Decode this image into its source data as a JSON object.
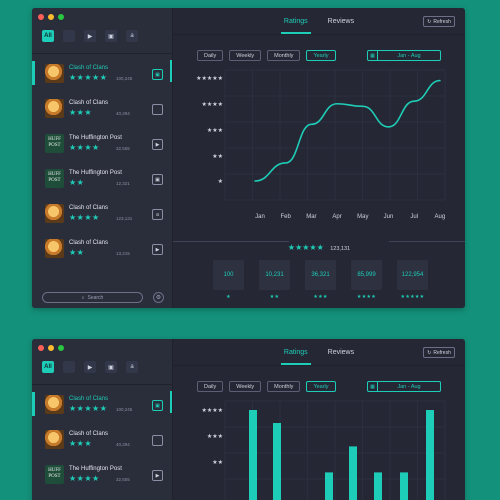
{
  "windows": [
    {
      "filters": [
        {
          "name": "all",
          "label": "All"
        },
        {
          "name": "apple",
          "label": ""
        },
        {
          "name": "play",
          "label": "▶"
        },
        {
          "name": "windows",
          "label": "▣"
        },
        {
          "name": "amazon",
          "label": "a"
        }
      ],
      "apps": [
        {
          "name": "Clash of Clans",
          "stars": "★★★★★",
          "count": "100,245",
          "icon": "coc",
          "store": "windows-store-icon",
          "store_glyph": "▣"
        },
        {
          "name": "Clash of Clans",
          "stars": "★★★",
          "count": "40,294",
          "icon": "coc",
          "store": "apple-store-icon",
          "store_glyph": ""
        },
        {
          "name": "The Huffington Post",
          "stars": "★★★★",
          "count": "32,555",
          "icon": "huff",
          "store": "play-store-icon",
          "store_glyph": "▶"
        },
        {
          "name": "The Huffington Post",
          "stars": "★★",
          "count": "12,321",
          "icon": "huff",
          "store": "windows-store-icon",
          "store_glyph": "▣"
        },
        {
          "name": "Clash of Clans",
          "stars": "★★★★",
          "count": "123,131",
          "icon": "coc",
          "store": "amazon-store-icon",
          "store_glyph": "a"
        },
        {
          "name": "Clash of Clans",
          "stars": "★★",
          "count": "13,215",
          "icon": "coc",
          "store": "play-store-icon",
          "store_glyph": "▶"
        }
      ],
      "huff_logo": "HUFF POST",
      "search_placeholder": "Search",
      "tabs": {
        "ratings": "Ratings",
        "reviews": "Reviews"
      },
      "refresh_label": "Refresh",
      "periods": [
        "Daily",
        "Weekly",
        "Monthly",
        "Yearly"
      ],
      "active_period": "Yearly",
      "date_range": "Jan - Aug",
      "summary": {
        "stars": "★★★★★",
        "count": "123,131"
      },
      "cards": [
        {
          "value": "100",
          "stars": "★"
        },
        {
          "value": "10,231",
          "stars": "★★"
        },
        {
          "value": "36,321",
          "stars": "★★★"
        },
        {
          "value": "85,999",
          "stars": "★★★★"
        },
        {
          "value": "122,954",
          "stars": "★★★★★"
        }
      ]
    },
    {
      "filters": [
        {
          "name": "all",
          "label": "All"
        },
        {
          "name": "apple",
          "label": ""
        },
        {
          "name": "play",
          "label": "▶"
        },
        {
          "name": "windows",
          "label": "▣"
        },
        {
          "name": "amazon",
          "label": "a"
        }
      ],
      "apps": [
        {
          "name": "Clash of Clans",
          "stars": "★★★★★",
          "count": "100,245",
          "icon": "coc",
          "store": "windows-store-icon",
          "store_glyph": "▣"
        },
        {
          "name": "Clash of Clans",
          "stars": "★★★",
          "count": "40,294",
          "icon": "coc",
          "store": "apple-store-icon",
          "store_glyph": ""
        },
        {
          "name": "The Huffington Post",
          "stars": "★★★★",
          "count": "32,555",
          "icon": "huff",
          "store": "play-store-icon",
          "store_glyph": "▶"
        }
      ],
      "huff_logo": "HUFF POST",
      "tabs": {
        "ratings": "Ratings",
        "reviews": "Reviews"
      },
      "refresh_label": "Refresh",
      "periods": [
        "Daily",
        "Weekly",
        "Monthly",
        "Yearly"
      ],
      "active_period": "Yearly",
      "date_range": "Jan - Aug"
    }
  ],
  "colors": {
    "accent": "#1ecdb8",
    "background": "#13917a",
    "window": "#272a36",
    "close": "#ff5f57",
    "minimize": "#febc2e",
    "maximize": "#28c840"
  },
  "chart_data": [
    {
      "type": "line",
      "categories": [
        "Jan",
        "Feb",
        "Mar",
        "Apr",
        "May",
        "Jun",
        "Jul",
        "Aug"
      ],
      "y_tick_labels": [
        "★",
        "★★",
        "★★★",
        "★★★★",
        "★★★★★"
      ],
      "ylim": [
        1,
        5
      ],
      "series": [
        {
          "values": [
            1.0,
            1.7,
            3.2,
            4.0,
            3.9,
            3.1,
            4.1,
            4.9
          ]
        }
      ],
      "grid": true
    },
    {
      "type": "bar",
      "y_tick_labels": [
        "★★",
        "★★★",
        "★★★★"
      ],
      "ylim": [
        1,
        4
      ],
      "series": [
        {
          "values": [
            4.0,
            3.5,
            1.6,
            2.6,
            1.6,
            1.6,
            4.0
          ]
        }
      ],
      "grid": true
    }
  ]
}
